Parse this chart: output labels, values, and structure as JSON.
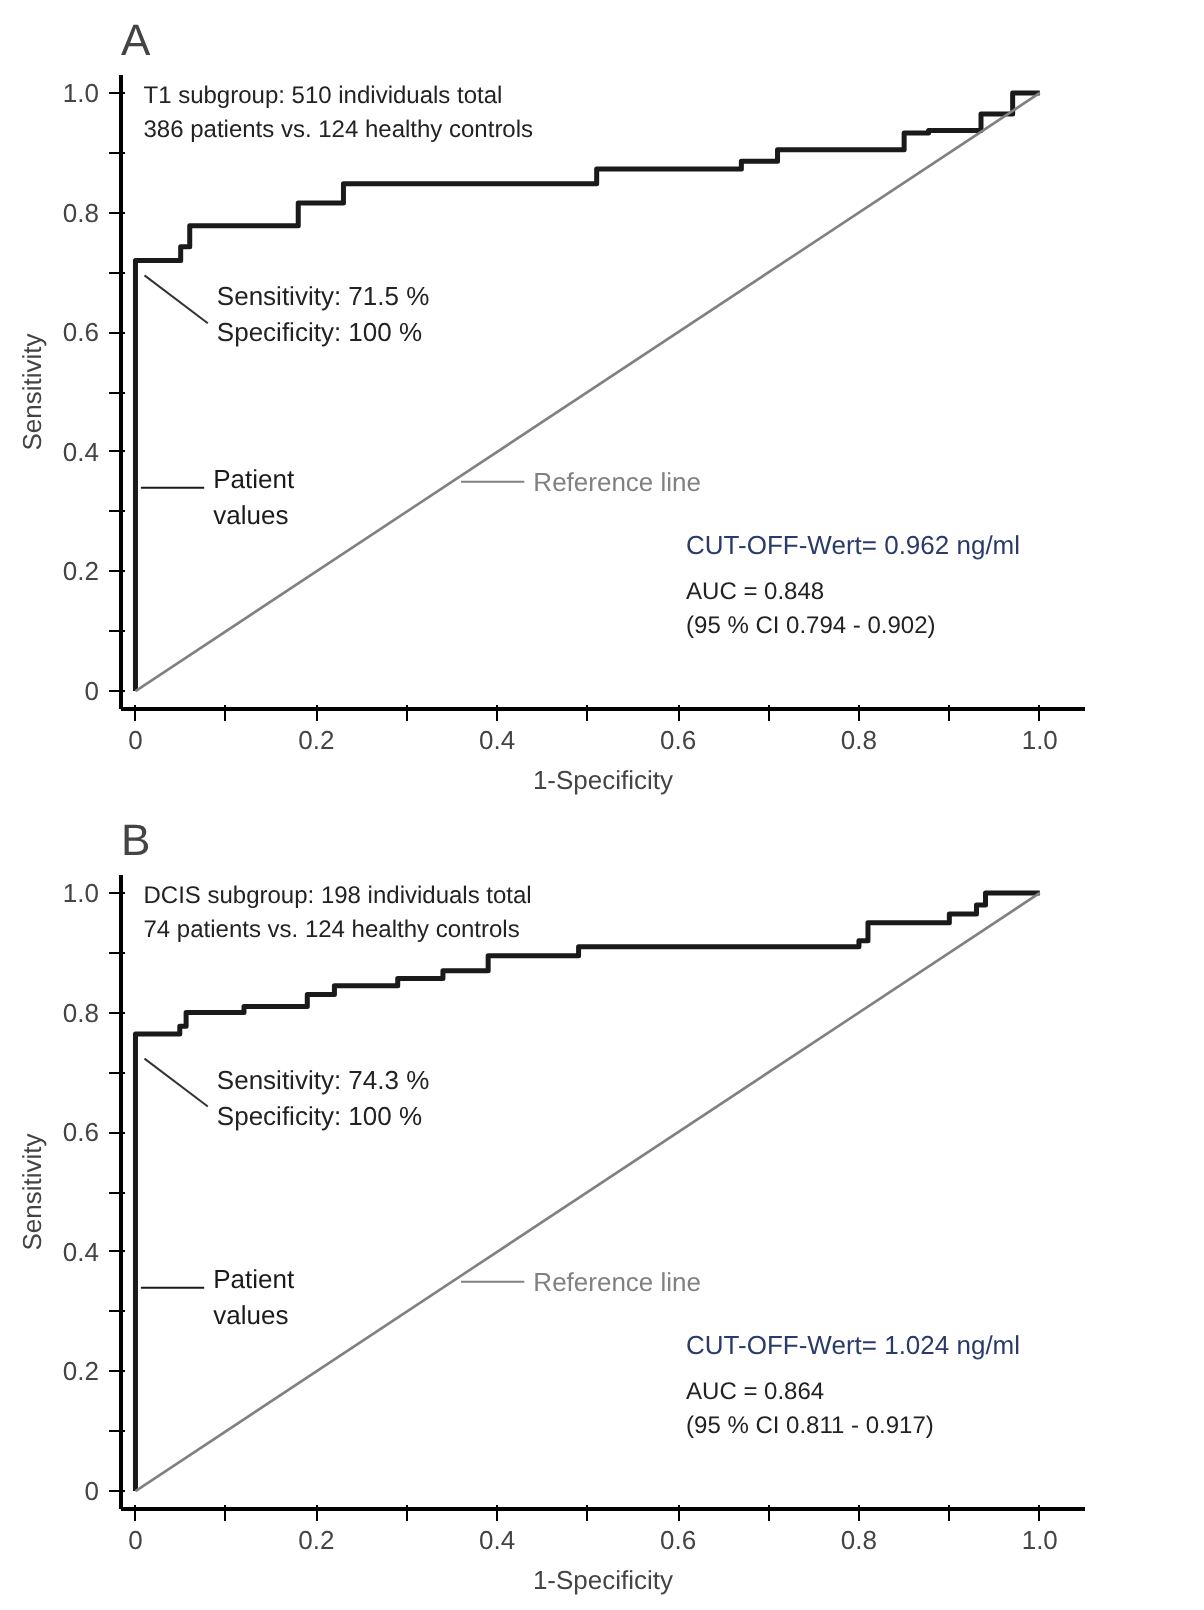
{
  "chart_data": [
    {
      "type": "line",
      "title": "A",
      "xlabel": "1-Specificity",
      "ylabel": "Sensitivity",
      "annotations": [
        "T1 subgroup: 510 individuals total\n386 patients vs. 124 healthy controls",
        "CUT-OFF-Wert= 0.962 ng/ml",
        "AUC = 0.848\n(95 % CI 0.794 - 0.902)",
        {
          "text": "Sensitivity: 71.5 %\nSpecificity: 100 %",
          "x": 0,
          "y": 0.715
        }
      ],
      "series": [
        {
          "name": "Patient values",
          "color": "#1a1a1a",
          "type": "step",
          "x": [
            0,
            0,
            0.05,
            0.06,
            0.18,
            0.23,
            0.51,
            0.67,
            0.71,
            0.85,
            0.877,
            0.935,
            0.97,
            1.0
          ],
          "values": [
            0,
            0.715,
            0.72,
            0.743,
            0.778,
            0.816,
            0.848,
            0.873,
            0.886,
            0.905,
            0.933,
            0.937,
            0.965,
            1.0
          ]
        },
        {
          "name": "Reference line",
          "color": "#808080",
          "x": [
            0,
            1
          ],
          "values": [
            0,
            1
          ]
        }
      ],
      "xlim": [
        -0.016,
        1.05
      ],
      "ylim": [
        -0.03,
        1.03
      ],
      "xticks": [
        0,
        {
          "value": 0.1,
          "label": null
        },
        0.2,
        {
          "value": 0.3,
          "label": null
        },
        0.4,
        {
          "value": 0.5,
          "label": null
        },
        0.6,
        {
          "value": 0.7,
          "label": null
        },
        0.8,
        {
          "value": 0.9,
          "label": null
        },
        {
          "value": 1.0,
          "label": "1.0"
        }
      ],
      "yticks": [
        0,
        {
          "value": 0.1,
          "label": null
        },
        0.2,
        {
          "value": 0.3,
          "label": null
        },
        0.4,
        {
          "value": 0.5,
          "label": null
        },
        0.6,
        {
          "value": 0.7,
          "label": null
        },
        0.8,
        {
          "value": 0.9,
          "label": null
        },
        {
          "value": 1.0,
          "label": "1.0"
        }
      ],
      "grid": false,
      "legend": "left"
    },
    {
      "type": "line",
      "title": "B",
      "xlabel": "1-Specificity",
      "ylabel": "Sensitivity",
      "annotations": [
        "DCIS subgroup: 198 individuals total\n74 patients vs. 124 healthy controls",
        "CUT-OFF-Wert= 1.024 ng/ml",
        "AUC = 0.864\n(95 % CI 0.811 - 0.917)",
        {
          "text": "Sensitivity: 74.3 %\nSpecificity: 100 %",
          "x": 0,
          "y": 0.743
        }
      ],
      "series": [
        {
          "name": "Patient values",
          "color": "#1a1a1a",
          "type": "step",
          "x": [
            0,
            0,
            0.049,
            0.056,
            0.12,
            0.19,
            0.22,
            0.29,
            0.34,
            0.39,
            0.49,
            0.8,
            0.81,
            0.9,
            0.93,
            0.94,
            1.0
          ],
          "values": [
            0,
            0.743,
            0.764,
            0.777,
            0.8,
            0.81,
            0.83,
            0.845,
            0.857,
            0.87,
            0.895,
            0.91,
            0.92,
            0.95,
            0.965,
            0.98,
            1.0
          ]
        },
        {
          "name": "Reference line",
          "color": "#808080",
          "x": [
            0,
            1
          ],
          "values": [
            0,
            1
          ]
        }
      ],
      "xlim": [
        -0.016,
        1.05
      ],
      "ylim": [
        -0.03,
        1.03
      ],
      "xticks": [
        0,
        {
          "value": 0.1,
          "label": null
        },
        0.2,
        {
          "value": 0.3,
          "label": null
        },
        0.4,
        {
          "value": 0.5,
          "label": null
        },
        0.6,
        {
          "value": 0.7,
          "label": null
        },
        0.8,
        {
          "value": 0.9,
          "label": null
        },
        {
          "value": 1.0,
          "label": "1.0"
        }
      ],
      "yticks": [
        0,
        {
          "value": 0.1,
          "label": null
        },
        0.2,
        {
          "value": 0.3,
          "label": null
        },
        0.4,
        {
          "value": 0.5,
          "label": null
        },
        0.6,
        {
          "value": 0.7,
          "label": null
        },
        0.8,
        {
          "value": 0.9,
          "label": null
        },
        {
          "value": 1.0,
          "label": "1.0"
        }
      ],
      "grid": false,
      "legend": "left"
    }
  ]
}
